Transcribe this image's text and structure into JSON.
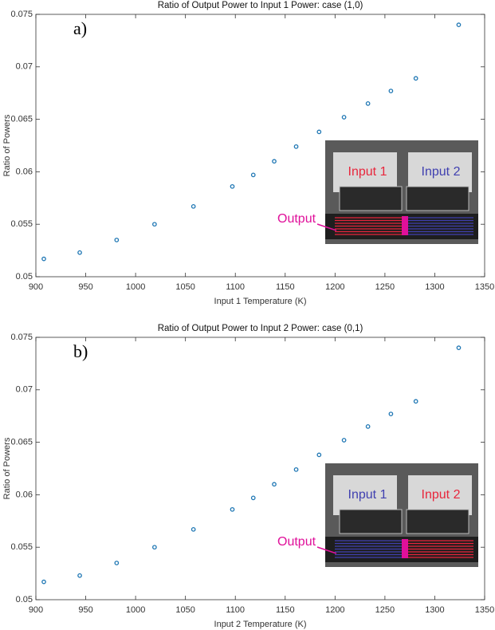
{
  "chart_data": [
    {
      "type": "scatter",
      "title": "Ratio of Output Power to Input 1 Power: case (1,0)",
      "panel_label": "a)",
      "x_label": "Input 1 Temperature (K)",
      "y_label": "Ratio of Powers",
      "x": [
        908,
        944,
        981,
        1019,
        1058,
        1097,
        1118,
        1139,
        1161,
        1184,
        1209,
        1233,
        1256,
        1281,
        1324
      ],
      "values": [
        0.0517,
        0.0523,
        0.0535,
        0.055,
        0.0567,
        0.0586,
        0.0597,
        0.061,
        0.0624,
        0.0638,
        0.0652,
        0.0665,
        0.0677,
        0.0689,
        0.074
      ],
      "color": "#1f77b4",
      "xlim": [
        900,
        1350
      ],
      "xticks": [
        900,
        950,
        1000,
        1050,
        1100,
        1150,
        1200,
        1250,
        1300,
        1350
      ],
      "ylim": [
        0.05,
        0.075
      ],
      "yticks": [
        0.05,
        0.055,
        0.06,
        0.065,
        0.07,
        0.075
      ],
      "inset": {
        "input_1": {
          "text": "Input 1",
          "color": "#e8263c"
        },
        "input_2": {
          "text": "Input 2",
          "color": "#4040b0"
        },
        "output": {
          "text": "Output",
          "color": "#e0109a"
        }
      }
    },
    {
      "type": "scatter",
      "title": "Ratio of Output Power to Input 2 Power: case (0,1)",
      "panel_label": "b)",
      "x_label": "Input 2 Temperature (K)",
      "y_label": "Ratio of Powers",
      "x": [
        908,
        944,
        981,
        1019,
        1058,
        1097,
        1118,
        1139,
        1161,
        1184,
        1209,
        1233,
        1256,
        1281,
        1324
      ],
      "values": [
        0.0517,
        0.0523,
        0.0535,
        0.055,
        0.0567,
        0.0586,
        0.0597,
        0.061,
        0.0624,
        0.0638,
        0.0652,
        0.0665,
        0.0677,
        0.0689,
        0.074
      ],
      "color": "#1f77b4",
      "xlim": [
        900,
        1350
      ],
      "xticks": [
        900,
        950,
        1000,
        1050,
        1100,
        1150,
        1200,
        1250,
        1300,
        1350
      ],
      "ylim": [
        0.05,
        0.075
      ],
      "yticks": [
        0.05,
        0.055,
        0.06,
        0.065,
        0.07,
        0.075
      ],
      "inset": {
        "input_1": {
          "text": "Input 1",
          "color": "#4040b0"
        },
        "input_2": {
          "text": "Input 2",
          "color": "#e8263c"
        },
        "output": {
          "text": "Output",
          "color": "#e0109a"
        }
      }
    }
  ]
}
